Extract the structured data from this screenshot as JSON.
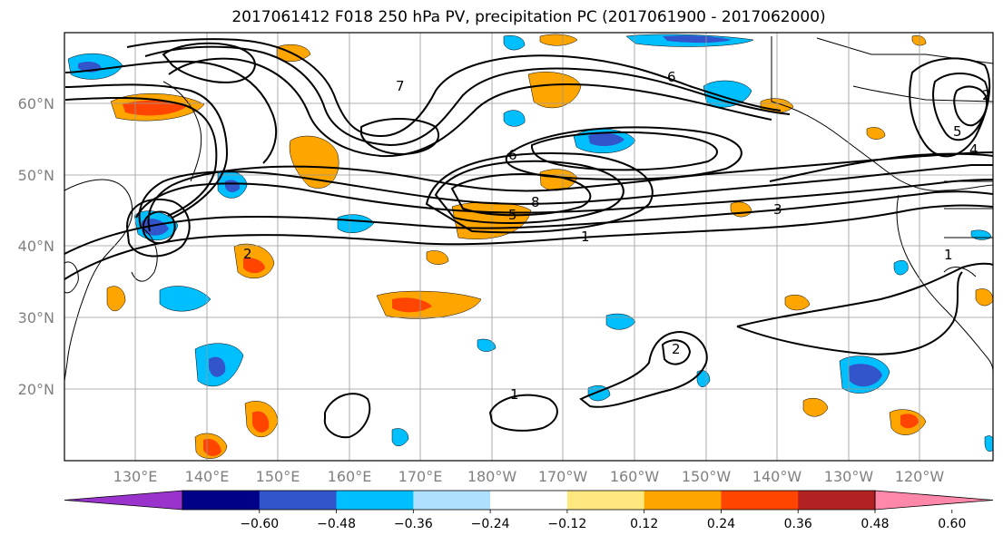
{
  "title": "2017061412 F018 250 hPa PV, precipitation PC (2017061900 - 2017062000)",
  "lat_labels": [
    "60°N",
    "50°N",
    "40°N",
    "30°N",
    "20°N"
  ],
  "lon_labels": [
    "130°E",
    "140°E",
    "150°E",
    "160°E",
    "170°E",
    "180°W",
    "170°W",
    "160°W",
    "150°W",
    "140°W",
    "130°W",
    "120°W"
  ],
  "colorbar": {
    "colors": [
      "#9933cc",
      "#000088",
      "#3355cc",
      "#00bfff",
      "#b0e0ff",
      "#ffffff",
      "#ffe87f",
      "#ffa500",
      "#ff4500",
      "#b22222",
      "#ff88aa"
    ],
    "tick_labels": [
      "−0.60",
      "−0.48",
      "−0.36",
      "−0.24",
      "−0.12",
      "0.12",
      "0.24",
      "0.36",
      "0.48",
      "0.60"
    ],
    "ticks": [
      -0.6,
      -0.48,
      -0.36,
      -0.24,
      -0.12,
      0.12,
      0.24,
      0.36,
      0.48,
      0.6
    ]
  },
  "contour_labels": [
    "1",
    "2",
    "3",
    "4",
    "5",
    "6",
    "7",
    "8"
  ],
  "map_features": {
    "pv_contours": "black",
    "precip_shading": "diverging",
    "grid": true
  }
}
